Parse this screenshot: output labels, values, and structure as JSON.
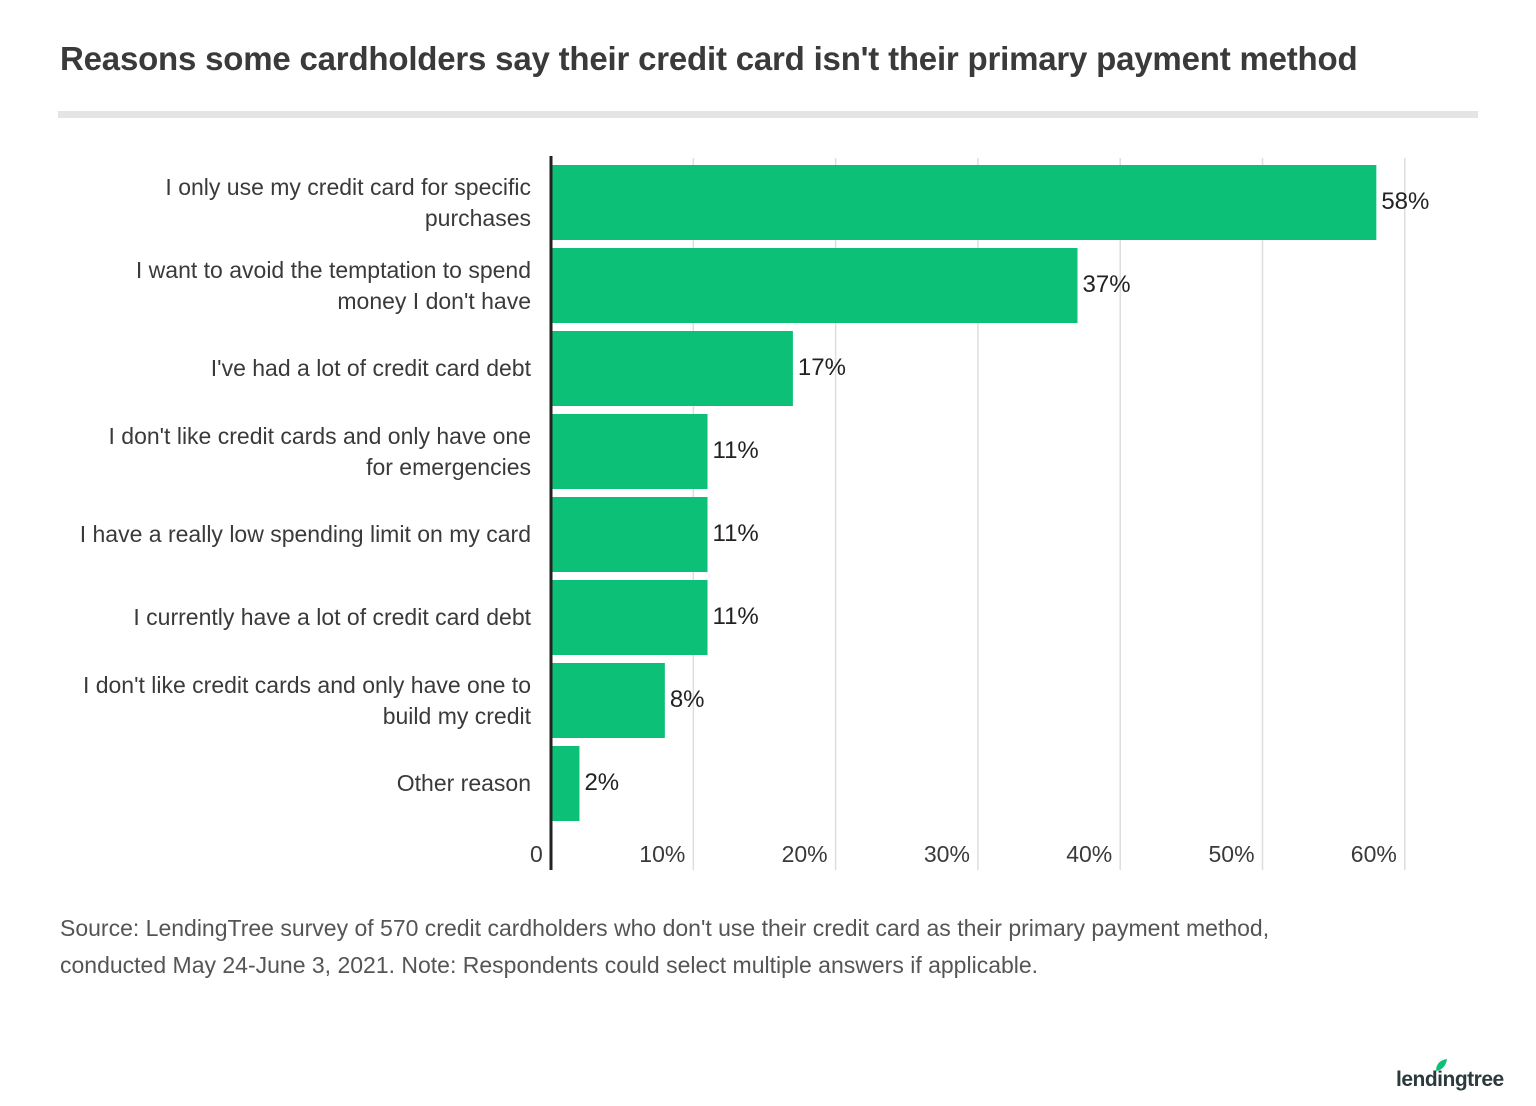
{
  "title": "Reasons some cardholders say their credit card isn't their primary payment method",
  "source_line1": "Source: LendingTree survey of 570 credit cardholders who don't use their credit card as their primary payment method,",
  "source_line2": "conducted May 24-June 3, 2021. Note: Respondents could select multiple answers if applicable.",
  "logo_text": "lendingtree",
  "logo_icon": "leaf-icon",
  "colors": {
    "bar": "#0cc177",
    "axis": "#222222",
    "grid": "#dddddd"
  },
  "chart_data": {
    "type": "bar",
    "orientation": "horizontal",
    "categories": [
      [
        "I only use my credit card for specific",
        "purchases"
      ],
      [
        "I want to avoid the temptation to spend",
        "money I don't have"
      ],
      [
        "I've had a lot of credit card debt"
      ],
      [
        "I don't like credit cards and only have one",
        "for emergencies"
      ],
      [
        "I have a really low spending limit on my card"
      ],
      [
        "I currently have a lot of credit card debt"
      ],
      [
        "I don't like credit cards and only have one to",
        "build my credit"
      ],
      [
        "Other reason"
      ]
    ],
    "values": [
      58,
      37,
      17,
      11,
      11,
      11,
      8,
      2
    ],
    "value_labels": [
      "58%",
      "37%",
      "17%",
      "11%",
      "11%",
      "11%",
      "8%",
      "2%"
    ],
    "xlim": [
      0,
      60
    ],
    "xticks": [
      0,
      10,
      20,
      30,
      40,
      50,
      60
    ],
    "xtick_labels": [
      "0",
      "10%",
      "20%",
      "30%",
      "40%",
      "50%",
      "60%"
    ],
    "grid": true
  }
}
